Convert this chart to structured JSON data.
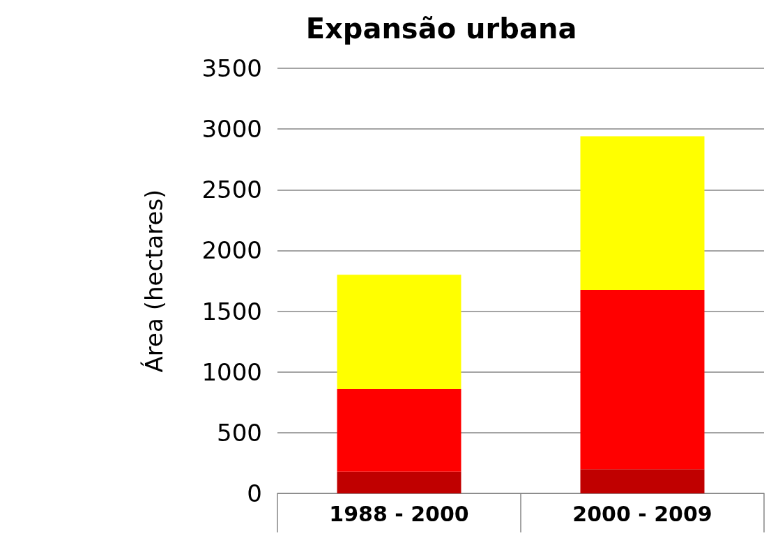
{
  "chart_data": {
    "type": "bar",
    "title": "Expansão urbana",
    "ylabel": "Área (hectares)",
    "categories": [
      "1988 - 2000",
      "2000 - 2009"
    ],
    "stacked": true,
    "series": [
      {
        "color": "#c00000",
        "values": [
          180,
          200
        ]
      },
      {
        "color": "#ff0000",
        "values": [
          680,
          1475
        ]
      },
      {
        "color": "#ffff00",
        "values": [
          940,
          1265
        ]
      }
    ],
    "ylim": [
      0,
      3500
    ],
    "yticks": [
      0,
      500,
      1000,
      1500,
      2000,
      2500,
      3000,
      3500
    ],
    "grid": "y"
  }
}
